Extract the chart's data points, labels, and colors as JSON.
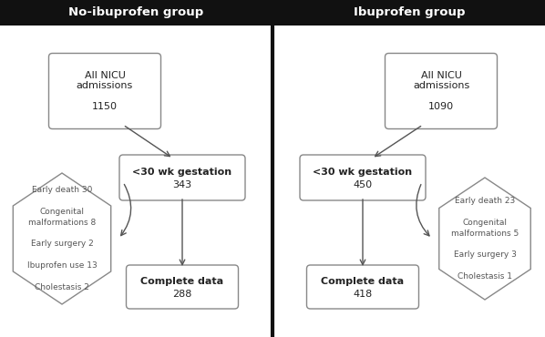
{
  "bg_color": "#ffffff",
  "header_bg": "#111111",
  "header_text_color": "#ffffff",
  "header_left": "No-ibuprofen group",
  "header_right": "Ibuprofen group",
  "divider_color": "#111111",
  "box_edge_color": "#888888",
  "box_face_color": "#ffffff",
  "arrow_color": "#555555",
  "text_color": "#222222",
  "gray_text_color": "#555555",
  "left_box1_text": "All NICU\nadmissions\n\n1150",
  "left_box2_line1": "<30 wk gestation",
  "left_box2_line2": "343",
  "left_box3_line1": "Complete data",
  "left_box3_line2": "288",
  "left_hex_text": "Early death 30\n\nCongenital\nmalformations 8\n\nEarly surgery 2\n\nIbuprofen use 13\n\nCholestasis 2",
  "right_box1_text": "All NICU\nadmissions\n\n1090",
  "right_box2_line1": "<30 wk gestation",
  "right_box2_line2": "450",
  "right_box3_line1": "Complete data",
  "right_box3_line2": "418",
  "right_hex_text": "Early death 23\n\nCongenital\nmalformations 5\n\nEarly surgery 3\n\nCholestasis 1"
}
